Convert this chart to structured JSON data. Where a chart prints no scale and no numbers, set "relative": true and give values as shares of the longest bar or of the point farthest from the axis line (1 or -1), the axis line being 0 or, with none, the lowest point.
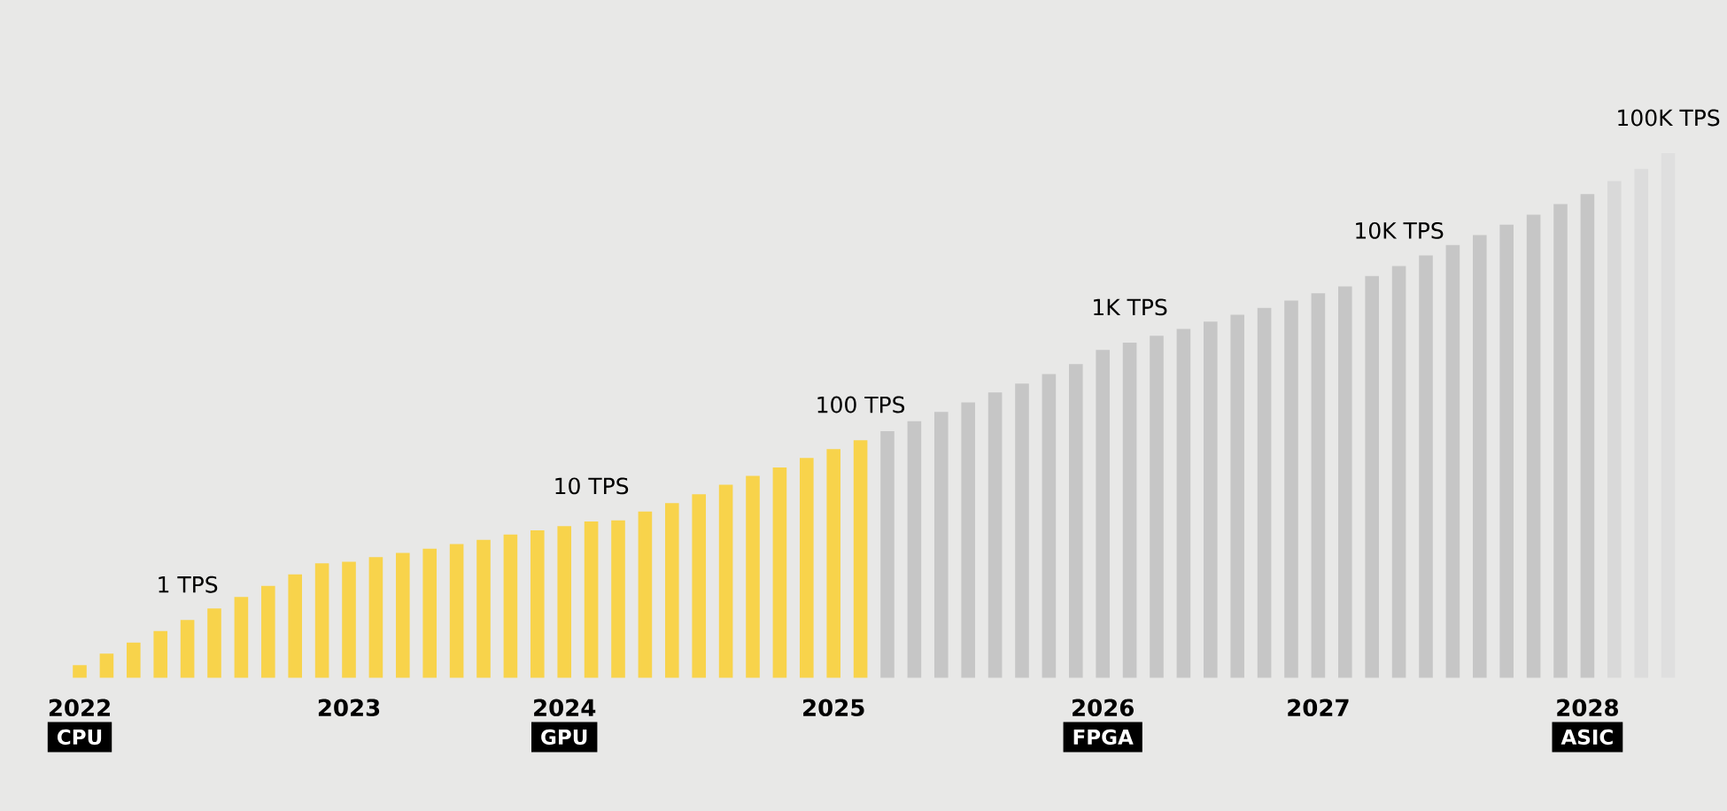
{
  "chart_data": {
    "type": "bar",
    "relative": true,
    "categories": [
      "2022",
      null,
      null,
      null,
      null,
      null,
      null,
      null,
      null,
      null,
      "2023",
      null,
      null,
      null,
      null,
      null,
      null,
      null,
      "2024",
      null,
      null,
      null,
      null,
      null,
      null,
      null,
      null,
      null,
      "2025",
      null,
      null,
      null,
      null,
      null,
      null,
      null,
      null,
      null,
      "2026",
      null,
      null,
      null,
      null,
      null,
      null,
      null,
      "2027",
      null,
      null,
      null,
      null,
      null,
      null,
      null,
      null,
      null,
      "2028",
      null,
      null,
      null
    ],
    "values": [
      0.024,
      0.046,
      0.067,
      0.089,
      0.11,
      0.132,
      0.154,
      0.175,
      0.197,
      0.218,
      0.221,
      0.23,
      0.238,
      0.246,
      0.255,
      0.263,
      0.273,
      0.281,
      0.289,
      0.298,
      0.3,
      0.317,
      0.333,
      0.35,
      0.368,
      0.385,
      0.401,
      0.419,
      0.436,
      0.453,
      0.47,
      0.489,
      0.507,
      0.525,
      0.544,
      0.561,
      0.579,
      0.598,
      0.625,
      0.639,
      0.652,
      0.665,
      0.679,
      0.692,
      0.705,
      0.719,
      0.733,
      0.746,
      0.766,
      0.785,
      0.805,
      0.825,
      0.844,
      0.864,
      0.883,
      0.903,
      0.922,
      0.947,
      0.97,
      1
    ],
    "colors": [
      "#f8d34b",
      "#f8d34b",
      "#f8d34b",
      "#f8d34b",
      "#f8d34b",
      "#f8d34b",
      "#f8d34b",
      "#f8d34b",
      "#f8d34b",
      "#f8d34b",
      "#f8d34b",
      "#f8d34b",
      "#f8d34b",
      "#f8d34b",
      "#f8d34b",
      "#f8d34b",
      "#f8d34b",
      "#f8d34b",
      "#f8d34b",
      "#f8d34b",
      "#f8d34b",
      "#f8d34b",
      "#f8d34b",
      "#f8d34b",
      "#f8d34b",
      "#f8d34b",
      "#f8d34b",
      "#f8d34b",
      "#f8d34b",
      "#f8d34b",
      "#c6c6c6",
      "#c6c6c6",
      "#c6c6c6",
      "#c6c6c6",
      "#c6c6c6",
      "#c6c6c6",
      "#c6c6c6",
      "#c6c6c6",
      "#c6c6c6",
      "#c6c6c6",
      "#c6c6c6",
      "#c6c6c6",
      "#c6c6c6",
      "#c6c6c6",
      "#c6c6c6",
      "#c6c6c6",
      "#c6c6c6",
      "#c6c6c6",
      "#c6c6c6",
      "#c6c6c6",
      "#c6c6c6",
      "#c6c6c6",
      "#c6c6c6",
      "#c6c6c6",
      "#c6c6c6",
      "#c6c6c6",
      "#c6c6c6",
      "#d9d9d9",
      "#dcdcdc",
      "#dfdfdf"
    ],
    "annotations": [
      {
        "text": "1 TPS",
        "y": 0.11
      },
      {
        "text": "10 TPS",
        "y": 0.298
      },
      {
        "text": "100 TPS",
        "y": 0.453
      },
      {
        "text": "1K TPS",
        "y": 0.639
      },
      {
        "text": "10K TPS",
        "y": 0.785
      },
      {
        "text": "100K TPS",
        "y": 1
      },
      "CPU",
      "GPU",
      "FPGA",
      "ASIC"
    ]
  }
}
